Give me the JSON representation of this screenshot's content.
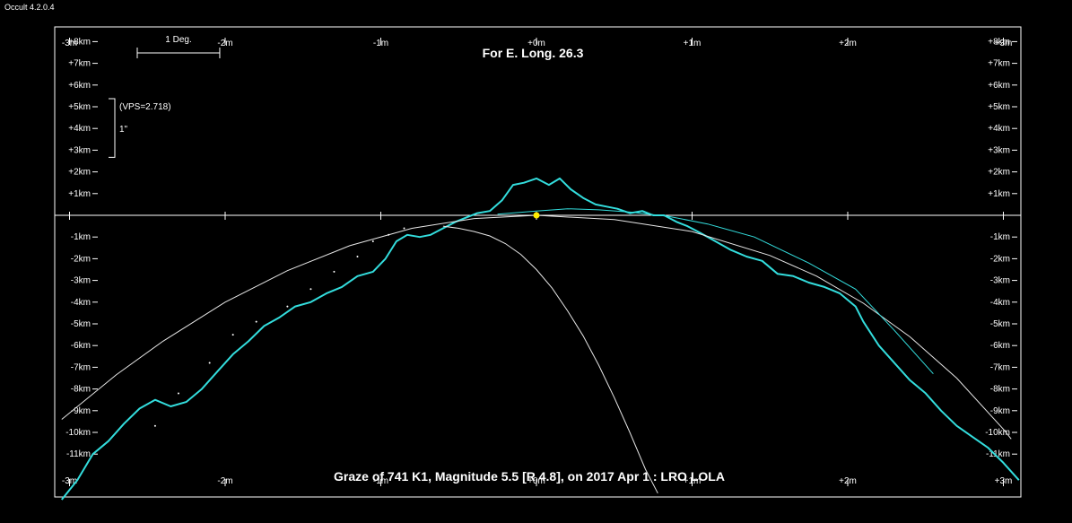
{
  "app": {
    "title": "Occult 4.2.0.4"
  },
  "chart_data": {
    "type": "line",
    "title": "For E. Long. 26.3",
    "caption": "Graze of 741 K1, Magnitude 5.5 [R 4.8], on 2017 Apr 1 : LRO LOLA",
    "x_unit": "minutes",
    "y_unit": "km",
    "xlim": [
      -3.05,
      3.05
    ],
    "ylim": [
      -12.8,
      8.4
    ],
    "x_ticks": [
      -3,
      -2,
      -1,
      0,
      1,
      2,
      3
    ],
    "x_tick_labels": [
      "-3m",
      "-2m",
      "-1m",
      "+0m",
      "+1m",
      "+2m",
      "+3m"
    ],
    "y_ticks": [
      8,
      7,
      6,
      5,
      4,
      3,
      2,
      1,
      -1,
      -2,
      -3,
      -4,
      -5,
      -6,
      -7,
      -8,
      -9,
      -10,
      -11
    ],
    "y_tick_labels": [
      "+8km",
      "+7km",
      "+6km",
      "+5km",
      "+4km",
      "+3km",
      "+2km",
      "+1km",
      "-1km",
      "-2km",
      "-3km",
      "-4km",
      "-5km",
      "-6km",
      "-7km",
      "-8km",
      "-9km",
      "-10km",
      "-11km"
    ],
    "scale_bar": {
      "label": "1 Deg.",
      "length_minutes": 0.53
    },
    "vertical_scale": {
      "label": "(VPS=2.718)",
      "unit_label": "1\"",
      "height_km": 2.7
    },
    "colors": {
      "profile": "#33dddd",
      "limb": "#e6e6e6",
      "grid": "#ffffff",
      "star": "#ffee00"
    },
    "series": [
      {
        "role": "profile",
        "x": [
          -3.05,
          -2.95,
          -2.85,
          -2.75,
          -2.65,
          -2.55,
          -2.45,
          -2.35,
          -2.25,
          -2.15,
          -2.05,
          -1.95,
          -1.85,
          -1.75,
          -1.65,
          -1.55,
          -1.45,
          -1.35,
          -1.25,
          -1.15,
          -1.05,
          -0.97,
          -0.9,
          -0.83,
          -0.75,
          -0.68,
          -0.6,
          -0.52,
          -0.45,
          -0.38,
          -0.3,
          -0.22,
          -0.15,
          -0.08,
          0.0,
          0.08,
          0.15,
          0.22,
          0.3,
          0.38,
          0.45,
          0.52,
          0.6,
          0.68,
          0.75,
          0.82,
          0.9,
          0.97,
          1.05,
          1.15,
          1.25,
          1.35,
          1.45,
          1.55,
          1.65,
          1.75,
          1.85,
          1.95,
          2.05,
          2.1,
          2.2,
          2.3,
          2.4,
          2.5,
          2.6,
          2.7,
          2.8,
          2.9,
          3.0,
          3.1
        ],
        "y": [
          -13.1,
          -12.2,
          -11.0,
          -10.4,
          -9.6,
          -8.9,
          -8.5,
          -8.8,
          -8.6,
          -8.0,
          -7.2,
          -6.4,
          -5.8,
          -5.1,
          -4.7,
          -4.2,
          -4.0,
          -3.6,
          -3.3,
          -2.8,
          -2.6,
          -2.0,
          -1.2,
          -0.9,
          -1.0,
          -0.9,
          -0.6,
          -0.3,
          -0.1,
          0.1,
          0.2,
          0.7,
          1.4,
          1.5,
          1.7,
          1.4,
          1.7,
          1.2,
          0.8,
          0.5,
          0.4,
          0.3,
          0.1,
          0.2,
          0.0,
          0.0,
          -0.3,
          -0.5,
          -0.8,
          -1.2,
          -1.6,
          -1.9,
          -2.1,
          -2.7,
          -2.8,
          -3.1,
          -3.3,
          -3.6,
          -4.2,
          -4.9,
          -6.0,
          -6.8,
          -7.6,
          -8.2,
          -9.0,
          -9.7,
          -10.2,
          -10.7,
          -11.4,
          -12.2
        ]
      },
      {
        "role": "limb-right",
        "x": [
          0.0,
          0.5,
          1.0,
          1.5,
          1.8,
          2.1,
          2.4,
          2.7,
          3.0,
          3.05
        ],
        "y": [
          0.0,
          -0.2,
          -0.75,
          -1.85,
          -2.8,
          -4.05,
          -5.6,
          -7.5,
          -9.85,
          -10.3
        ]
      },
      {
        "role": "limb-left",
        "x": [
          0.0,
          -0.4,
          -0.8,
          -1.2,
          -1.6,
          -2.0,
          -2.4,
          -2.7,
          -3.05
        ],
        "y": [
          0.0,
          -0.15,
          -0.6,
          -1.4,
          -2.55,
          -4.0,
          -5.8,
          -7.35,
          -9.4
        ]
      },
      {
        "role": "steep-curve",
        "x": [
          -0.6,
          -0.5,
          -0.4,
          -0.3,
          -0.2,
          -0.1,
          0.0,
          0.1,
          0.2,
          0.3,
          0.4,
          0.5,
          0.6,
          0.7,
          0.78
        ],
        "y": [
          -0.5,
          -0.6,
          -0.75,
          -0.95,
          -1.3,
          -1.8,
          -2.5,
          -3.35,
          -4.4,
          -5.55,
          -6.9,
          -8.4,
          -10.0,
          -11.7,
          -12.8
        ]
      },
      {
        "role": "fit-segments",
        "x": [
          -0.25,
          0.0,
          0.2,
          0.4,
          0.6,
          0.85,
          1.1,
          1.4,
          1.75,
          2.05,
          2.3,
          2.55
        ],
        "y": [
          0.05,
          0.2,
          0.3,
          0.25,
          0.15,
          -0.05,
          -0.4,
          -1.0,
          -2.2,
          -3.4,
          -5.3,
          -7.3
        ]
      },
      {
        "role": "dots",
        "x": [
          -2.45,
          -2.3,
          -2.1,
          -1.95,
          -1.8,
          -1.6,
          -1.45,
          -1.3,
          -1.15,
          -1.05,
          -0.95,
          -0.85
        ],
        "y": [
          -9.7,
          -8.2,
          -6.8,
          -5.5,
          -4.9,
          -4.2,
          -3.4,
          -2.6,
          -1.9,
          -1.2,
          -0.9,
          -0.6
        ]
      }
    ],
    "star": {
      "x": 0.0,
      "y": 0.0
    }
  }
}
